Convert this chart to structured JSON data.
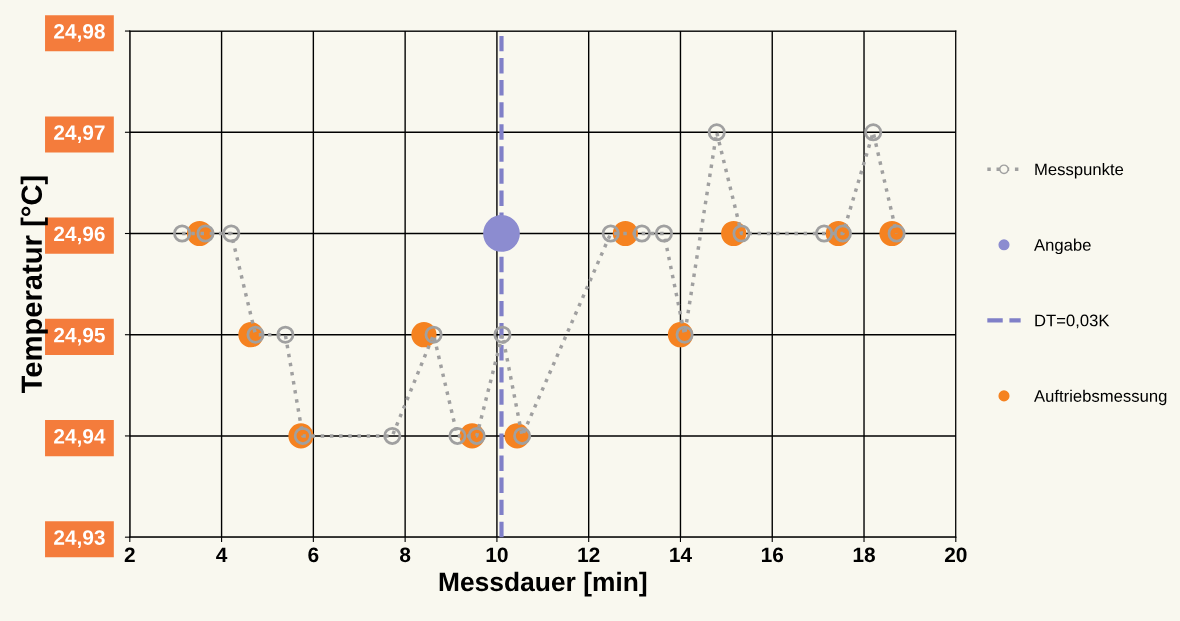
{
  "chart_data": {
    "type": "line",
    "xlabel": "Messdauer [min]",
    "ylabel": "Temperatur [°C]",
    "xlim": [
      2,
      20
    ],
    "xticks": [
      2,
      4,
      6,
      8,
      10,
      12,
      14,
      16,
      18,
      20
    ],
    "ylim": [
      24.93,
      24.98
    ],
    "yticks": [
      {
        "value": 24.93,
        "label": "24,93"
      },
      {
        "value": 24.94,
        "label": "24,94"
      },
      {
        "value": 24.95,
        "label": "24,95"
      },
      {
        "value": 24.96,
        "label": "24,96"
      },
      {
        "value": 24.97,
        "label": "24,97"
      },
      {
        "value": 24.98,
        "label": "24,98"
      }
    ],
    "grid": true,
    "legend": "right",
    "series": [
      {
        "name": "Messpunkte",
        "type": "line",
        "marker": "circle",
        "line_style": "dotted",
        "color": "#a0a0a0",
        "x": [
          3.14,
          3.65,
          4.21,
          4.74,
          5.39,
          5.77,
          7.72,
          8.62,
          9.14,
          9.56,
          10.12,
          10.55,
          12.48,
          13.16,
          13.64,
          14.09,
          14.79,
          15.33,
          17.13,
          17.54,
          18.2,
          18.71
        ],
        "values": [
          24.96,
          24.96,
          24.96,
          24.95,
          24.95,
          24.94,
          24.94,
          24.95,
          24.94,
          24.94,
          24.95,
          24.94,
          24.96,
          24.96,
          24.96,
          24.95,
          24.97,
          24.96,
          24.96,
          24.96,
          24.97,
          24.96
        ]
      },
      {
        "name": "Angabe",
        "type": "scatter",
        "marker": "circle",
        "color": "#8c8cd0",
        "x": [
          10.1
        ],
        "values": [
          24.96
        ]
      },
      {
        "name": "DT=0,03K",
        "marker": "none",
        "line_style": "dashed",
        "color": "#8080c8",
        "x": [
          10.1,
          10.1
        ],
        "values": [
          24.93,
          24.98
        ]
      },
      {
        "name": "Auftriebsmessung",
        "type": "scatter",
        "marker": "circle",
        "color": "#f58220",
        "x": [
          3.52,
          4.64,
          5.73,
          8.41,
          9.46,
          10.44,
          12.8,
          14.0,
          15.16,
          17.44,
          18.61
        ],
        "values": [
          24.96,
          24.95,
          24.94,
          24.95,
          24.94,
          24.94,
          24.96,
          24.95,
          24.96,
          24.96,
          24.96
        ]
      }
    ]
  }
}
